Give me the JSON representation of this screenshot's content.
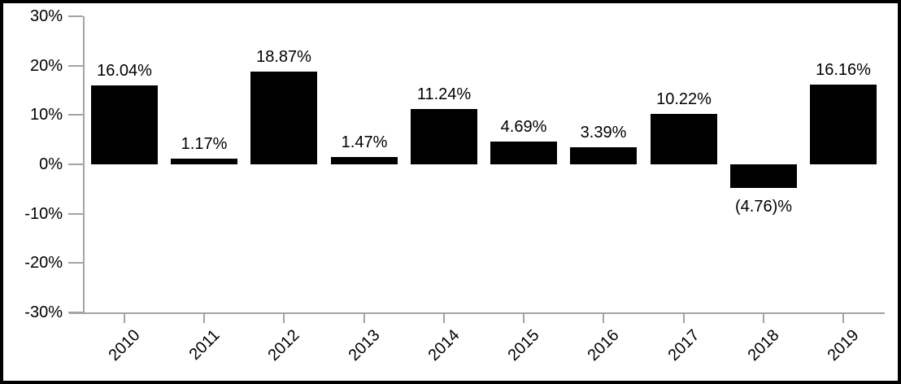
{
  "chart_data": {
    "type": "bar",
    "title": "",
    "xlabel": "",
    "ylabel": "",
    "categories": [
      "2010",
      "2011",
      "2012",
      "2013",
      "2014",
      "2015",
      "2016",
      "2017",
      "2018",
      "2019"
    ],
    "values": [
      16.04,
      1.17,
      18.87,
      1.47,
      11.24,
      4.69,
      3.39,
      10.22,
      -4.76,
      16.16
    ],
    "bar_labels": [
      "16.04%",
      "1.17%",
      "18.87%",
      "1.47%",
      "11.24%",
      "4.69%",
      "3.39%",
      "10.22%",
      "(4.76)%",
      "16.16%"
    ],
    "yticks": [
      30,
      20,
      10,
      0,
      -10,
      -20,
      -30
    ],
    "ytick_labels": [
      "30%",
      "20%",
      "10%",
      "0%",
      "-10%",
      "-20%",
      "-30%"
    ],
    "ylim": [
      -30,
      30
    ],
    "grid": false,
    "legend": false,
    "colors": {
      "bar": "#000000",
      "axis": "#a3a3a3",
      "text": "#000000",
      "background": "#ffffff",
      "frame_border": "#000000"
    }
  }
}
